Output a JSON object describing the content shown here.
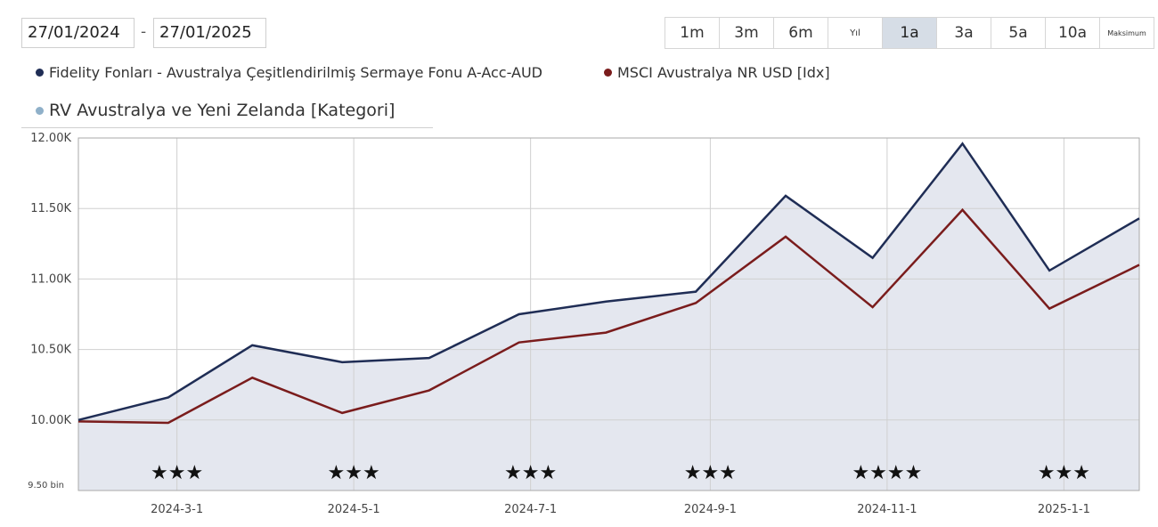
{
  "date_range": {
    "from": "27/01/2024",
    "separator": "-",
    "to": "27/01/2025"
  },
  "range_buttons": [
    {
      "label": "1m",
      "active": false
    },
    {
      "label": "3m",
      "active": false
    },
    {
      "label": "6m",
      "active": false
    },
    {
      "label": "Yıl",
      "active": false
    },
    {
      "label": "1a",
      "active": true
    },
    {
      "label": "3a",
      "active": false
    },
    {
      "label": "5a",
      "active": false
    },
    {
      "label": "10a",
      "active": false
    },
    {
      "label": "Maksimum",
      "active": false
    }
  ],
  "legend": [
    {
      "label": "Fidelity Fonları - Avustralya Çeşitlendirilmiş Sermaye Fonu A-Acc-AUD",
      "color": "#1f2d55"
    },
    {
      "label": "MSCI Avustralya NR USD [Idx]",
      "color": "#7a1c1c"
    },
    {
      "label": "RV Avustralya ve Yeni Zelanda [Kategori]",
      "color": "#8fb0c9"
    }
  ],
  "colors": {
    "area_fill": "#e4e7ef",
    "grid": "#d0d0d0",
    "plot_border": "#aaaaaa",
    "range_active": "#d6dde6"
  },
  "chart_data": {
    "type": "line",
    "x": [
      "2024-01-27",
      "2024-02-27",
      "2024-03-27",
      "2024-04-27",
      "2024-05-27",
      "2024-06-27",
      "2024-07-27",
      "2024-08-27",
      "2024-09-27",
      "2024-10-27",
      "2024-11-27",
      "2024-12-27",
      "2025-01-27"
    ],
    "series": [
      {
        "name": "Fidelity Fonları - Avustralya Çeşitlendirilmiş Sermaye Fonu A-Acc-AUD",
        "values": [
          10000,
          10160,
          10530,
          10410,
          10440,
          10750,
          10840,
          10910,
          11590,
          11150,
          11960,
          11060,
          11430
        ]
      },
      {
        "name": "MSCI Avustralya NR USD [Idx]",
        "values": [
          9990,
          9980,
          10300,
          10050,
          10210,
          10550,
          10620,
          10830,
          11300,
          10800,
          11490,
          10790,
          11100
        ]
      }
    ],
    "y_ticks": [
      {
        "value": 12000,
        "label": "12.00K"
      },
      {
        "value": 11500,
        "label": "11.50K"
      },
      {
        "value": 11000,
        "label": "11.00K"
      },
      {
        "value": 10500,
        "label": "10.50K"
      },
      {
        "value": 10000,
        "label": "10.00K"
      },
      {
        "value": 9500,
        "label": "9.50 bin"
      }
    ],
    "x_ticks": [
      {
        "date": "2024-03-01",
        "label": "2024-3-1"
      },
      {
        "date": "2024-05-01",
        "label": "2024-5-1"
      },
      {
        "date": "2024-07-01",
        "label": "2024-7-1"
      },
      {
        "date": "2024-09-01",
        "label": "2024-9-1"
      },
      {
        "date": "2024-11-01",
        "label": "2024-11-1"
      },
      {
        "date": "2025-01-01",
        "label": "2025-1-1"
      }
    ],
    "ratings": [
      {
        "date": "2024-03-01",
        "stars": "★★★"
      },
      {
        "date": "2024-05-01",
        "stars": "★★★"
      },
      {
        "date": "2024-07-01",
        "stars": "★★★"
      },
      {
        "date": "2024-09-01",
        "stars": "★★★"
      },
      {
        "date": "2024-11-01",
        "stars": "★★★★"
      },
      {
        "date": "2025-01-01",
        "stars": "★★★"
      }
    ],
    "ylim": [
      9500,
      12000
    ],
    "xlim": [
      "2024-01-27",
      "2025-01-27"
    ],
    "grid": true
  }
}
